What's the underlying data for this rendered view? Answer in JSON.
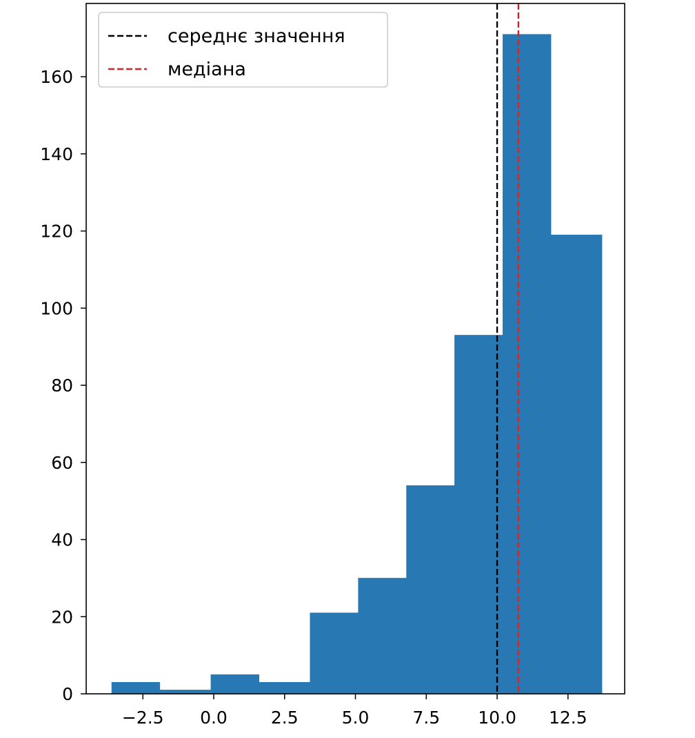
{
  "chart_data": {
    "type": "bar",
    "bins": [
      {
        "x0": -3.6,
        "x1": -1.9,
        "count": 3
      },
      {
        "x0": -1.9,
        "x1": -0.1,
        "count": 1
      },
      {
        "x0": -0.1,
        "x1": 1.6,
        "count": 5
      },
      {
        "x0": 1.6,
        "x1": 3.4,
        "count": 3
      },
      {
        "x0": 3.4,
        "x1": 5.1,
        "count": 21
      },
      {
        "x0": 5.1,
        "x1": 6.8,
        "count": 30
      },
      {
        "x0": 6.8,
        "x1": 8.5,
        "count": 54
      },
      {
        "x0": 8.5,
        "x1": 10.2,
        "count": 93
      },
      {
        "x0": 10.2,
        "x1": 11.9,
        "count": 171
      },
      {
        "x0": 11.9,
        "x1": 13.7,
        "count": 119
      }
    ],
    "xlim": [
      -4.5,
      14.5
    ],
    "ylim": [
      0,
      179
    ],
    "xticks": [
      -2.5,
      0.0,
      2.5,
      5.0,
      7.5,
      10.0,
      12.5
    ],
    "xtick_labels": [
      "−2.5",
      "0.0",
      "2.5",
      "5.0",
      "7.5",
      "10.0",
      "12.5"
    ],
    "yticks": [
      0,
      20,
      40,
      60,
      80,
      100,
      120,
      140,
      160
    ],
    "ytick_labels": [
      "0",
      "20",
      "40",
      "60",
      "80",
      "100",
      "120",
      "140",
      "160"
    ],
    "vlines": [
      {
        "name": "середнє значення",
        "x": 10.0,
        "color": "#000000",
        "style": "dashed"
      },
      {
        "name": "медіана",
        "x": 10.75,
        "color": "#d62728",
        "style": "dashed"
      }
    ],
    "bar_color": "#2878b4",
    "grid": false,
    "legend_position": "top-left",
    "title": "",
    "xlabel": "",
    "ylabel": ""
  }
}
